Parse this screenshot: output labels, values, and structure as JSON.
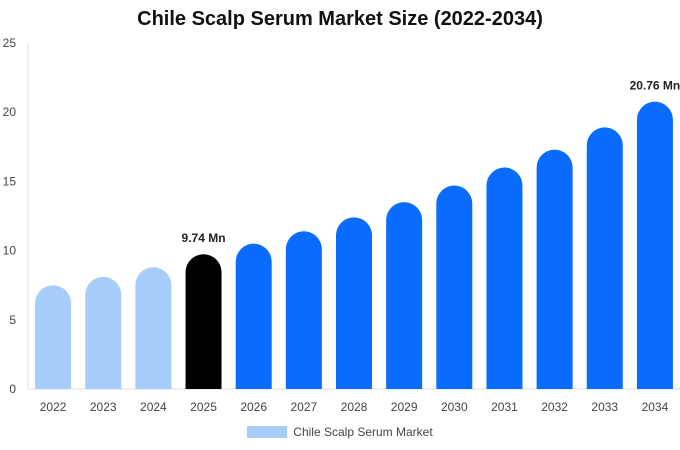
{
  "chart_data": {
    "type": "bar",
    "title": "Chile Scalp Serum Market Size (2022-2034)",
    "categories": [
      "2022",
      "2023",
      "2024",
      "2025",
      "2026",
      "2027",
      "2028",
      "2029",
      "2030",
      "2031",
      "2032",
      "2033",
      "2034"
    ],
    "series": [
      {
        "name": "Chile Scalp Serum Market",
        "values": [
          7.5,
          8.1,
          8.8,
          9.74,
          10.5,
          11.4,
          12.4,
          13.5,
          14.7,
          16.0,
          17.3,
          18.9,
          20.76
        ]
      }
    ],
    "data_labels": [
      {
        "category": "2025",
        "text": "9.74 Mn"
      },
      {
        "category": "2034",
        "text": "20.76 Mn"
      }
    ],
    "ylim": [
      0,
      25
    ],
    "yticks": [
      "0",
      "5",
      "10",
      "15",
      "20",
      "25"
    ],
    "xlabel": "",
    "ylabel": "",
    "grid": false,
    "legend_position": "bottom",
    "colors": {
      "historical": "#a6cdfb",
      "current": "#000000",
      "forecast": "#0a6cff",
      "legend_swatch": "#a6cdfb"
    },
    "current_category": "2025"
  }
}
